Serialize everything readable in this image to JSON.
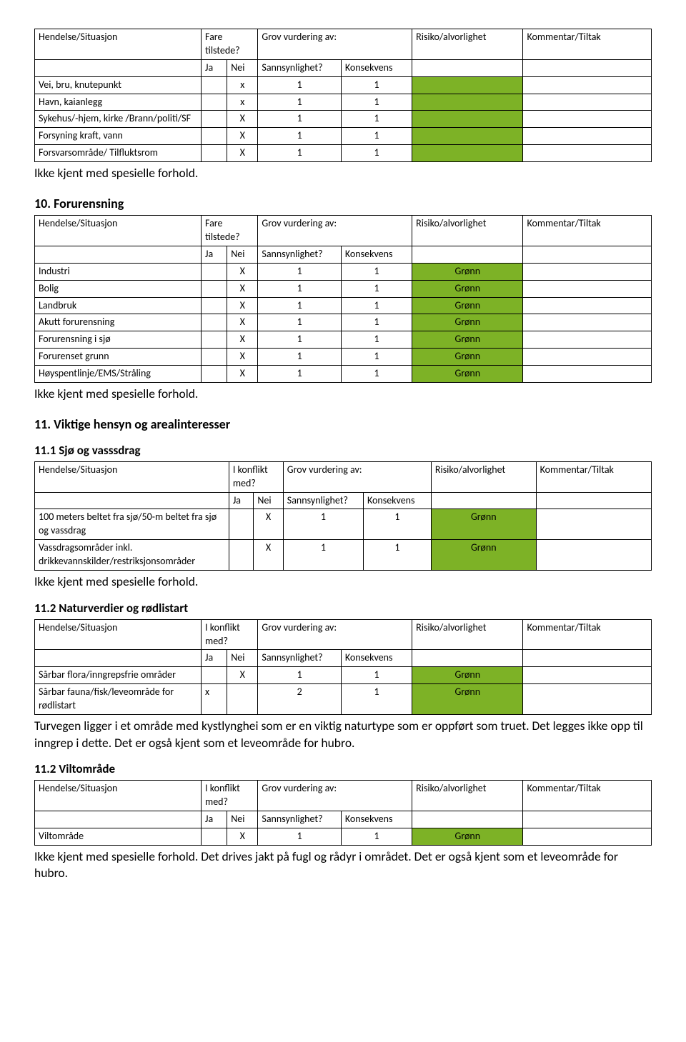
{
  "labels": {
    "hendelse": "Hendelse/Situasjon",
    "fare": "Fare tilstede?",
    "konflikt": "I konflikt med?",
    "ja": "Ja",
    "nei": "Nei",
    "grov": "Grov vurdering av:",
    "sann": "Sannsynlighet?",
    "kons": "Konsekvens",
    "risk": "Risiko/alvorlighet",
    "komm": "Kommentar/Tiltak"
  },
  "notes": {
    "ikke_kjent": "Ikke kjent med spesielle forhold.",
    "n11_2_text": "Turvegen ligger i et område med kystlynghei som er en viktig naturtype som er oppført som truet. Det legges ikke opp til inngrep i dette. Det er også kjent som et leveområde for hubro.",
    "n11_2b_text": "Ikke kjent med spesielle forhold. Det drives jakt på fugl og rådyr i området. Det er også kjent som et leveområde for hubro."
  },
  "sections": {
    "s10": "10. Forurensning",
    "s11": "11. Viktige hensyn og arealinteresser",
    "s11_1": "11.1 Sjø og vasssdrag",
    "s11_2": "11.2 Naturverdier og rødlistart",
    "s11_2b": "11.2 Viltområde"
  },
  "table1_rows": [
    {
      "name": "Vei, bru, knutepunkt",
      "ja": "",
      "nei": "x",
      "sann": "1",
      "kons": "1",
      "green": true,
      "risk": ""
    },
    {
      "name": "Havn, kaianlegg",
      "ja": "",
      "nei": "x",
      "sann": "1",
      "kons": "1",
      "green": true,
      "risk": ""
    },
    {
      "name": "Sykehus/-hjem, kirke /Brann/politi/SF",
      "ja": "",
      "nei": "X",
      "sann": "1",
      "kons": "1",
      "green": true,
      "risk": ""
    },
    {
      "name": "Forsyning kraft, vann",
      "ja": "",
      "nei": "X",
      "sann": "1",
      "kons": "1",
      "green": true,
      "risk": ""
    },
    {
      "name": "Forsvarsområde/ Tilfluktsrom",
      "ja": "",
      "nei": "X",
      "sann": "1",
      "kons": "1",
      "green": true,
      "risk": ""
    }
  ],
  "table2_rows": [
    {
      "name": "Industri",
      "ja": "",
      "nei": "X",
      "sann": "1",
      "kons": "1",
      "risk": "Grønn"
    },
    {
      "name": "Bolig",
      "ja": "",
      "nei": "X",
      "sann": "1",
      "kons": "1",
      "risk": "Grønn"
    },
    {
      "name": "Landbruk",
      "ja": "",
      "nei": "X",
      "sann": "1",
      "kons": "1",
      "risk": "Grønn"
    },
    {
      "name": "Akutt forurensning",
      "ja": "",
      "nei": "X",
      "sann": "1",
      "kons": "1",
      "risk": "Grønn"
    },
    {
      "name": "Forurensning i sjø",
      "ja": "",
      "nei": "X",
      "sann": "1",
      "kons": "1",
      "risk": "Grønn"
    },
    {
      "name": "Forurenset grunn",
      "ja": "",
      "nei": "X",
      "sann": "1",
      "kons": "1",
      "risk": "Grønn"
    },
    {
      "name": "Høyspentlinje/EMS/Stråling",
      "ja": "",
      "nei": "X",
      "sann": "1",
      "kons": "1",
      "risk": "Grønn"
    }
  ],
  "table3_rows": [
    {
      "name": "100 meters beltet fra sjø/50-m beltet fra sjø og vassdrag",
      "ja": "",
      "nei": "X",
      "sann": "1",
      "kons": "1",
      "risk": "Grønn"
    },
    {
      "name": "Vassdragsområder inkl. drikkevannskilder/restriksjonsområder",
      "ja": "",
      "nei": "X",
      "sann": "1",
      "kons": "1",
      "risk": "Grønn"
    }
  ],
  "table4_rows": [
    {
      "name": "Sårbar flora/inngrepsfrie områder",
      "ja": "",
      "nei": "X",
      "sann": "1",
      "kons": "1",
      "risk": "Grønn"
    },
    {
      "name": "Sårbar fauna/fisk/leveområde for rødlistart",
      "ja": "x",
      "nei": "",
      "sann": "2",
      "kons": "1",
      "risk": "Grønn"
    }
  ],
  "table5_rows": [
    {
      "name": "Viltområde",
      "ja": "",
      "nei": "X",
      "sann": "1",
      "kons": "1",
      "risk": "Grønn"
    }
  ],
  "colors": {
    "green": "#7db226"
  }
}
